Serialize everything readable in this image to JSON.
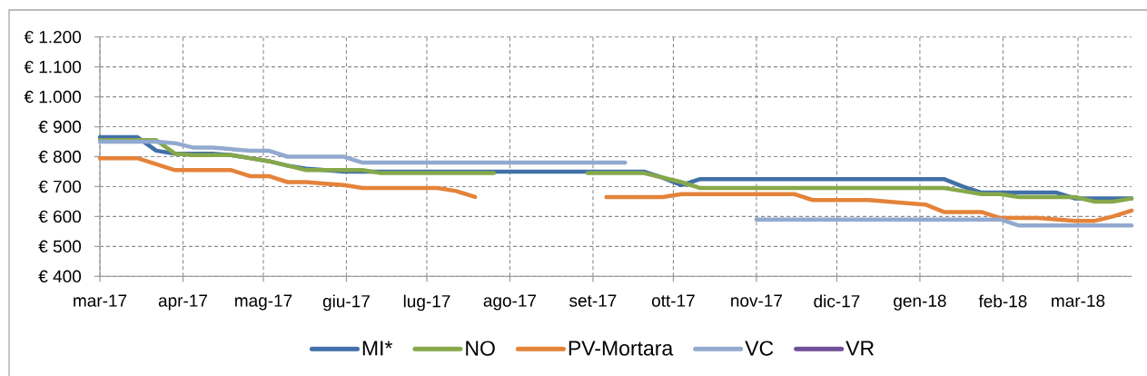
{
  "chart_data": {
    "type": "line",
    "x": [
      "2017-03-01",
      "2017-03-08",
      "2017-03-15",
      "2017-03-22",
      "2017-03-29",
      "2017-04-05",
      "2017-04-12",
      "2017-04-19",
      "2017-04-26",
      "2017-05-03",
      "2017-05-10",
      "2017-05-17",
      "2017-05-24",
      "2017-05-31",
      "2017-06-07",
      "2017-06-14",
      "2017-06-21",
      "2017-06-28",
      "2017-07-05",
      "2017-07-12",
      "2017-07-19",
      "2017-07-26",
      "2017-08-02",
      "2017-08-09",
      "2017-08-16",
      "2017-08-23",
      "2017-08-30",
      "2017-09-06",
      "2017-09-13",
      "2017-09-20",
      "2017-09-27",
      "2017-10-04",
      "2017-10-11",
      "2017-10-18",
      "2017-10-25",
      "2017-11-01",
      "2017-11-08",
      "2017-11-15",
      "2017-11-22",
      "2017-11-29",
      "2017-12-06",
      "2017-12-13",
      "2017-12-20",
      "2017-12-27",
      "2018-01-03",
      "2018-01-10",
      "2018-01-17",
      "2018-01-24",
      "2018-01-31",
      "2018-02-07",
      "2018-02-14",
      "2018-02-21",
      "2018-02-28",
      "2018-03-07",
      "2018-03-14",
      "2018-03-21"
    ],
    "series": [
      {
        "name": "MI*",
        "color": "#4170a8",
        "values": [
          865,
          865,
          865,
          820,
          810,
          810,
          810,
          805,
          795,
          785,
          770,
          760,
          755,
          750,
          750,
          750,
          750,
          750,
          750,
          750,
          750,
          750,
          750,
          750,
          750,
          750,
          750,
          750,
          750,
          750,
          730,
          705,
          725,
          725,
          725,
          725,
          725,
          725,
          725,
          725,
          725,
          725,
          725,
          725,
          725,
          725,
          700,
          680,
          680,
          680,
          680,
          680,
          660,
          660,
          660,
          660
        ]
      },
      {
        "name": "NO",
        "color": "#86a84a",
        "values": [
          855,
          855,
          855,
          855,
          810,
          805,
          805,
          805,
          795,
          785,
          770,
          755,
          755,
          755,
          755,
          745,
          745,
          745,
          745,
          745,
          745,
          745,
          null,
          null,
          null,
          null,
          745,
          745,
          745,
          745,
          730,
          715,
          695,
          695,
          695,
          695,
          695,
          695,
          695,
          695,
          695,
          695,
          695,
          695,
          695,
          695,
          685,
          675,
          675,
          665,
          665,
          665,
          665,
          650,
          650,
          660
        ]
      },
      {
        "name": "PV-Mortara",
        "color": "#e4833a",
        "values": [
          795,
          795,
          795,
          775,
          755,
          755,
          755,
          755,
          735,
          735,
          715,
          715,
          710,
          705,
          695,
          695,
          695,
          695,
          695,
          685,
          665,
          null,
          null,
          null,
          null,
          null,
          null,
          665,
          665,
          665,
          665,
          675,
          675,
          675,
          675,
          675,
          675,
          675,
          655,
          655,
          655,
          655,
          650,
          645,
          640,
          615,
          615,
          615,
          595,
          595,
          595,
          590,
          585,
          585,
          600,
          620
        ]
      },
      {
        "name": "VC",
        "color": "#92a9d0",
        "values": [
          850,
          850,
          850,
          850,
          845,
          830,
          830,
          825,
          820,
          820,
          800,
          800,
          800,
          800,
          780,
          780,
          780,
          780,
          780,
          780,
          780,
          780,
          780,
          780,
          780,
          780,
          780,
          780,
          780,
          null,
          null,
          null,
          null,
          null,
          null,
          590,
          590,
          590,
          590,
          590,
          590,
          590,
          590,
          590,
          590,
          590,
          590,
          590,
          590,
          570,
          570,
          570,
          570,
          570,
          570,
          570
        ]
      },
      {
        "name": "VR",
        "color": "#6f4f96",
        "values": [
          null,
          null,
          null,
          null,
          null,
          null,
          null,
          null,
          null,
          null,
          null,
          null,
          null,
          null,
          null,
          null,
          null,
          null,
          null,
          null,
          null,
          null,
          null,
          null,
          null,
          null,
          null,
          null,
          null,
          null,
          null,
          null,
          null,
          null,
          null,
          null,
          null,
          null,
          null,
          null,
          null,
          null,
          null,
          null,
          null,
          null,
          null,
          null,
          null,
          null,
          null,
          null,
          null,
          null,
          null,
          null
        ]
      }
    ],
    "xlim": [
      "2017-03-01",
      "2018-03-21"
    ],
    "xticks": [
      {
        "value": "2017-03-01",
        "label": "mar-17"
      },
      {
        "value": "2017-04-01",
        "label": "apr-17"
      },
      {
        "value": "2017-05-01",
        "label": "mag-17"
      },
      {
        "value": "2017-06-01",
        "label": "giu-17"
      },
      {
        "value": "2017-07-01",
        "label": "lug-17"
      },
      {
        "value": "2017-08-01",
        "label": "ago-17"
      },
      {
        "value": "2017-09-01",
        "label": "set-17"
      },
      {
        "value": "2017-10-01",
        "label": "ott-17"
      },
      {
        "value": "2017-11-01",
        "label": "nov-17"
      },
      {
        "value": "2017-12-01",
        "label": "dic-17"
      },
      {
        "value": "2018-01-01",
        "label": "gen-18"
      },
      {
        "value": "2018-02-01",
        "label": "feb-18"
      },
      {
        "value": "2018-03-01",
        "label": "mar-18"
      }
    ],
    "ylim": [
      400,
      1200
    ],
    "yticks": [
      {
        "value": 400,
        "label": "€ 400"
      },
      {
        "value": 500,
        "label": "€ 500"
      },
      {
        "value": 600,
        "label": "€ 600"
      },
      {
        "value": 700,
        "label": "€ 700"
      },
      {
        "value": 800,
        "label": "€ 800"
      },
      {
        "value": 900,
        "label": "€ 900"
      },
      {
        "value": 1000,
        "label": "€ 1.000"
      },
      {
        "value": 1100,
        "label": "€ 1.100"
      },
      {
        "value": 1200,
        "label": "€ 1.200"
      }
    ],
    "grid": true,
    "legend": "bottom"
  }
}
